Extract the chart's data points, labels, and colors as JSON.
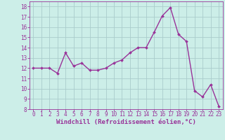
{
  "x": [
    0,
    1,
    2,
    3,
    4,
    5,
    6,
    7,
    8,
    9,
    10,
    11,
    12,
    13,
    14,
    15,
    16,
    17,
    18,
    19,
    20,
    21,
    22,
    23
  ],
  "y": [
    12.0,
    12.0,
    12.0,
    11.5,
    13.5,
    12.2,
    12.5,
    11.8,
    11.8,
    12.0,
    12.5,
    12.8,
    13.5,
    14.0,
    14.0,
    15.5,
    17.1,
    17.9,
    15.3,
    14.6,
    9.8,
    9.2,
    10.4,
    8.3
  ],
  "line_color": "#993399",
  "marker": "D",
  "marker_size": 2.0,
  "line_width": 1.0,
  "bg_color": "#cceee8",
  "grid_color": "#aacccc",
  "xlabel": "Windchill (Refroidissement éolien,°C)",
  "xlabel_color": "#993399",
  "xlabel_fontsize": 6.5,
  "tick_color": "#993399",
  "tick_fontsize": 5.5,
  "ylim": [
    8,
    18.5
  ],
  "xlim": [
    -0.5,
    23.5
  ],
  "yticks": [
    8,
    9,
    10,
    11,
    12,
    13,
    14,
    15,
    16,
    17,
    18
  ],
  "xticks": [
    0,
    1,
    2,
    3,
    4,
    5,
    6,
    7,
    8,
    9,
    10,
    11,
    12,
    13,
    14,
    15,
    16,
    17,
    18,
    19,
    20,
    21,
    22,
    23
  ]
}
